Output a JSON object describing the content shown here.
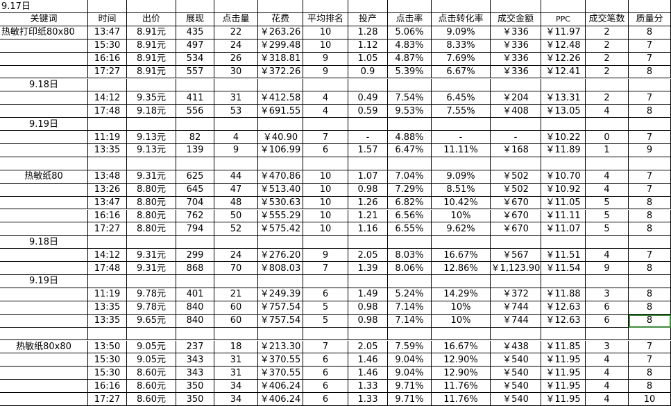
{
  "sheet_title": "9.17日",
  "headers": [
    "关键词",
    "时间",
    "出价",
    "展现",
    "点击量",
    "花费",
    "平均排名",
    "投产",
    "点击率",
    "点击转化率",
    "成交金额",
    "PPC",
    "成交笔数",
    "质量分"
  ],
  "groups": [
    {
      "keyword": "热敏打印纸80x80",
      "sections": [
        {
          "date": "",
          "rows": [
            [
              "13:47",
              "8.91元",
              "435",
              "22",
              "￥263.26",
              "10",
              "1.28",
              "5.06%",
              "9.09%",
              "￥336",
              "￥11.97",
              "2",
              "8"
            ],
            [
              "15:30",
              "8.91元",
              "497",
              "24",
              "￥299.48",
              "10",
              "1.12",
              "4.83%",
              "8.33%",
              "￥336",
              "￥12.48",
              "2",
              "7"
            ],
            [
              "16:16",
              "8.91元",
              "534",
              "26",
              "￥318.81",
              "9",
              "1.05",
              "4.87%",
              "7.69%",
              "￥336",
              "￥12.26",
              "2",
              "7"
            ],
            [
              "17:27",
              "8.91元",
              "557",
              "30",
              "￥372.26",
              "9",
              "0.9",
              "5.39%",
              "6.67%",
              "￥336",
              "￥12.41",
              "2",
              "8"
            ]
          ]
        },
        {
          "date": "9.18日",
          "rows": [
            [
              "14:12",
              "9.35元",
              "411",
              "31",
              "￥412.58",
              "4",
              "0.49",
              "7.54%",
              "6.45%",
              "￥204",
              "￥13.31",
              "2",
              "7"
            ],
            [
              "17:48",
              "9.18元",
              "556",
              "53",
              "￥691.55",
              "4",
              "0.59",
              "9.53%",
              "7.55%",
              "￥408",
              "￥13.05",
              "4",
              "8"
            ]
          ]
        },
        {
          "date": "9.19日",
          "rows": [
            [
              "11:19",
              "9.13元",
              "82",
              "4",
              "￥40.90",
              "7",
              "-",
              "4.88%",
              "-",
              "-",
              "￥10.22",
              "0",
              "7"
            ],
            [
              "13:35",
              "9.13元",
              "139",
              "9",
              "￥106.99",
              "6",
              "1.57",
              "6.47%",
              "11.11%",
              "￥168",
              "￥11.89",
              "1",
              "9"
            ]
          ]
        }
      ]
    },
    {
      "keyword": "热敏纸80",
      "sections": [
        {
          "date": "",
          "rows": [
            [
              "13:48",
              "9.31元",
              "625",
              "44",
              "￥470.86",
              "10",
              "1.07",
              "7.04%",
              "9.09%",
              "￥502",
              "￥10.70",
              "4",
              "7"
            ],
            [
              "13:26",
              "8.80元",
              "645",
              "47",
              "￥513.40",
              "10",
              "0.98",
              "7.29%",
              "8.51%",
              "￥502",
              "￥10.92",
              "4",
              "7"
            ],
            [
              "13:47",
              "8.80元",
              "704",
              "48",
              "￥530.63",
              "10",
              "1.26",
              "6.82%",
              "10.42%",
              "￥670",
              "￥11.05",
              "5",
              "8"
            ],
            [
              "16:16",
              "8.80元",
              "762",
              "50",
              "￥555.29",
              "10",
              "1.21",
              "6.56%",
              "10%",
              "￥670",
              "￥11.11",
              "5",
              "8"
            ],
            [
              "17:27",
              "8.80元",
              "794",
              "52",
              "￥575.42",
              "10",
              "1.16",
              "6.55%",
              "9.62%",
              "￥670",
              "￥11.07",
              "5",
              "8"
            ]
          ]
        },
        {
          "date": "9.18日",
          "rows": [
            [
              "14:12",
              "9.31元",
              "299",
              "24",
              "￥276.20",
              "9",
              "2.05",
              "8.03%",
              "16.67%",
              "￥567",
              "￥11.51",
              "4",
              "7"
            ],
            [
              "17:48",
              "9.31元",
              "868",
              "70",
              "￥808.03",
              "7",
              "1.39",
              "8.06%",
              "12.86%",
              "￥1,123.90",
              "￥11.54",
              "9",
              "8"
            ]
          ]
        },
        {
          "date": "9.19日",
          "rows": [
            [
              "11:19",
              "9.78元",
              "401",
              "21",
              "￥249.39",
              "6",
              "1.49",
              "5.24%",
              "14.29%",
              "￥372",
              "￥11.88",
              "3",
              "8"
            ],
            [
              "13:35",
              "9.78元",
              "840",
              "60",
              "￥757.54",
              "5",
              "0.98",
              "7.14%",
              "10%",
              "￥744",
              "￥12.63",
              "6",
              "8"
            ],
            [
              "13:35",
              "9.65元",
              "840",
              "60",
              "￥757.54",
              "5",
              "0.98",
              "7.14%",
              "10%",
              "￥744",
              "￥12.63",
              "6",
              "8"
            ]
          ]
        }
      ]
    },
    {
      "keyword": "热敏纸80x80",
      "sections": [
        {
          "date": "",
          "rows": [
            [
              "13:50",
              "9.05元",
              "237",
              "18",
              "￥213.30",
              "7",
              "2.05",
              "7.59%",
              "16.67%",
              "￥438",
              "￥11.85",
              "3",
              "7"
            ],
            [
              "15:30",
              "9.05元",
              "343",
              "31",
              "￥370.55",
              "6",
              "1.46",
              "9.04%",
              "12.90%",
              "￥540",
              "￥11.95",
              "4",
              "7"
            ],
            [
              "15:30",
              "8.60元",
              "343",
              "31",
              "￥370.55",
              "6",
              "1.46",
              "9.04%",
              "12.90%",
              "￥540",
              "￥11.95",
              "4",
              "8"
            ],
            [
              "16:16",
              "8.60元",
              "350",
              "34",
              "￥406.24",
              "6",
              "1.33",
              "9.71%",
              "11.76%",
              "￥540",
              "￥11.95",
              "4",
              "8"
            ],
            [
              "17:27",
              "8.60元",
              "350",
              "34",
              "￥406.24",
              "6",
              "1.33",
              "9.71%",
              "11.76%",
              "￥540",
              "￥11.95",
              "4",
              "10"
            ]
          ]
        }
      ]
    }
  ]
}
